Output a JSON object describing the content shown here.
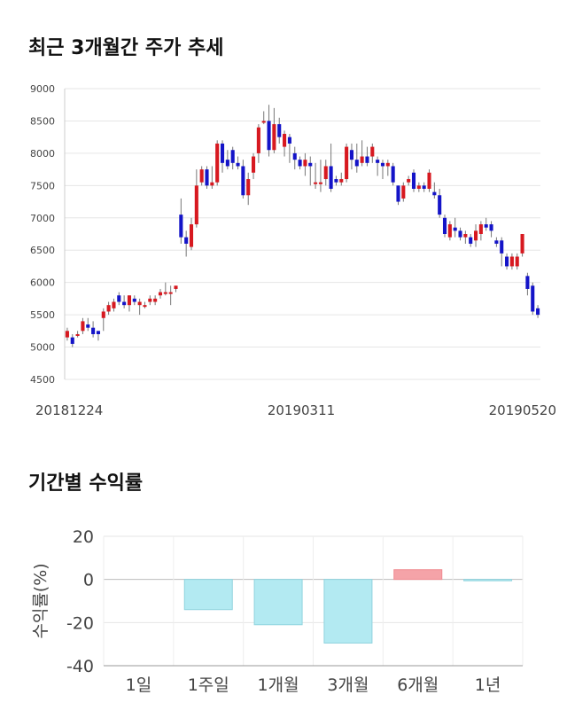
{
  "headings": {
    "price_trend": "최근 3개월간 주가 추세",
    "period_returns": "기간별 수익률"
  },
  "chart_data": [
    {
      "type": "candlestick",
      "ylim": [
        4500,
        9000
      ],
      "yticks": [
        "9000",
        "8500",
        "8000",
        "7500",
        "7000",
        "6500",
        "6000",
        "5500",
        "5000",
        "4500"
      ],
      "xticks": [
        "20181224",
        "20190311",
        "20190520"
      ],
      "grid": true,
      "up_color": "#d71920",
      "down_color": "#1414c8",
      "candles": [
        {
          "o": 5150,
          "c": 5250,
          "h": 5300,
          "l": 5100
        },
        {
          "o": 5150,
          "c": 5050,
          "h": 5200,
          "l": 5000
        },
        {
          "o": 5200,
          "c": 5200,
          "h": 5250,
          "l": 5150
        },
        {
          "o": 5250,
          "c": 5400,
          "h": 5450,
          "l": 5200
        },
        {
          "o": 5350,
          "c": 5300,
          "h": 5450,
          "l": 5250
        },
        {
          "o": 5300,
          "c": 5200,
          "h": 5400,
          "l": 5150
        },
        {
          "o": 5250,
          "c": 5200,
          "h": 5250,
          "l": 5100
        },
        {
          "o": 5450,
          "c": 5550,
          "h": 5600,
          "l": 5250
        },
        {
          "o": 5550,
          "c": 5650,
          "h": 5700,
          "l": 5500
        },
        {
          "o": 5600,
          "c": 5700,
          "h": 5750,
          "l": 5550
        },
        {
          "o": 5800,
          "c": 5700,
          "h": 5850,
          "l": 5650
        },
        {
          "o": 5700,
          "c": 5650,
          "h": 5800,
          "l": 5600
        },
        {
          "o": 5650,
          "c": 5800,
          "h": 5800,
          "l": 5550
        },
        {
          "o": 5750,
          "c": 5700,
          "h": 5800,
          "l": 5650
        },
        {
          "o": 5650,
          "c": 5700,
          "h": 5750,
          "l": 5500
        },
        {
          "o": 5650,
          "c": 5650,
          "h": 5700,
          "l": 5600
        },
        {
          "o": 5700,
          "c": 5750,
          "h": 5800,
          "l": 5650
        },
        {
          "o": 5700,
          "c": 5750,
          "h": 5800,
          "l": 5650
        },
        {
          "o": 5800,
          "c": 5850,
          "h": 5900,
          "l": 5750
        },
        {
          "o": 5850,
          "c": 5850,
          "h": 6000,
          "l": 5800
        },
        {
          "o": 5850,
          "c": 5850,
          "h": 5950,
          "l": 5650
        },
        {
          "o": 5900,
          "c": 5950,
          "h": 5950,
          "l": 5850
        },
        {
          "o": 7050,
          "c": 6700,
          "h": 7300,
          "l": 6600
        },
        {
          "o": 6700,
          "c": 6600,
          "h": 6800,
          "l": 6400
        },
        {
          "o": 6550,
          "c": 6900,
          "h": 7000,
          "l": 6500
        },
        {
          "o": 6900,
          "c": 7500,
          "h": 7750,
          "l": 6850
        },
        {
          "o": 7550,
          "c": 7750,
          "h": 7800,
          "l": 7500
        },
        {
          "o": 7750,
          "c": 7500,
          "h": 7800,
          "l": 7450
        },
        {
          "o": 7500,
          "c": 7550,
          "h": 7800,
          "l": 7450
        },
        {
          "o": 7550,
          "c": 8150,
          "h": 8200,
          "l": 7500
        },
        {
          "o": 8150,
          "c": 7850,
          "h": 8200,
          "l": 7700
        },
        {
          "o": 7900,
          "c": 7800,
          "h": 8050,
          "l": 7750
        },
        {
          "o": 8050,
          "c": 7850,
          "h": 8100,
          "l": 7750
        },
        {
          "o": 7850,
          "c": 7800,
          "h": 7950,
          "l": 7750
        },
        {
          "o": 7800,
          "c": 7350,
          "h": 7900,
          "l": 7300
        },
        {
          "o": 7350,
          "c": 7600,
          "h": 7700,
          "l": 7200
        },
        {
          "o": 7700,
          "c": 7950,
          "h": 8000,
          "l": 7600
        },
        {
          "o": 8000,
          "c": 8400,
          "h": 8450,
          "l": 7850
        },
        {
          "o": 8500,
          "c": 8500,
          "h": 8650,
          "l": 8450
        },
        {
          "o": 8500,
          "c": 8050,
          "h": 8750,
          "l": 7950
        },
        {
          "o": 8050,
          "c": 8450,
          "h": 8700,
          "l": 8000
        },
        {
          "o": 8450,
          "c": 8250,
          "h": 8550,
          "l": 8150
        },
        {
          "o": 8100,
          "c": 8300,
          "h": 8350,
          "l": 7950
        },
        {
          "o": 8250,
          "c": 8150,
          "h": 8300,
          "l": 7850
        },
        {
          "o": 8000,
          "c": 7900,
          "h": 8100,
          "l": 7750
        },
        {
          "o": 7900,
          "c": 7800,
          "h": 7950,
          "l": 7750
        },
        {
          "o": 7800,
          "c": 7900,
          "h": 8000,
          "l": 7650
        },
        {
          "o": 7850,
          "c": 7800,
          "h": 7950,
          "l": 7500
        },
        {
          "o": 7550,
          "c": 7550,
          "h": 7850,
          "l": 7450
        },
        {
          "o": 7550,
          "c": 7550,
          "h": 7900,
          "l": 7400
        },
        {
          "o": 7600,
          "c": 7800,
          "h": 7900,
          "l": 7500
        },
        {
          "o": 7800,
          "c": 7450,
          "h": 8150,
          "l": 7400
        },
        {
          "o": 7600,
          "c": 7550,
          "h": 7650,
          "l": 7500
        },
        {
          "o": 7550,
          "c": 7600,
          "h": 7700,
          "l": 7500
        },
        {
          "o": 7600,
          "c": 8100,
          "h": 8150,
          "l": 7550
        },
        {
          "o": 8050,
          "c": 7900,
          "h": 8150,
          "l": 7750
        },
        {
          "o": 7900,
          "c": 7800,
          "h": 8150,
          "l": 7700
        },
        {
          "o": 7850,
          "c": 7950,
          "h": 8200,
          "l": 7800
        },
        {
          "o": 7950,
          "c": 7850,
          "h": 8100,
          "l": 7800
        },
        {
          "o": 7950,
          "c": 8100,
          "h": 8150,
          "l": 7850
        },
        {
          "o": 7900,
          "c": 7850,
          "h": 7950,
          "l": 7650
        },
        {
          "o": 7850,
          "c": 7800,
          "h": 7900,
          "l": 7600
        },
        {
          "o": 7800,
          "c": 7850,
          "h": 7900,
          "l": 7650
        },
        {
          "o": 7800,
          "c": 7550,
          "h": 7850,
          "l": 7500
        },
        {
          "o": 7500,
          "c": 7250,
          "h": 7500,
          "l": 7200
        },
        {
          "o": 7300,
          "c": 7500,
          "h": 7550,
          "l": 7250
        },
        {
          "o": 7550,
          "c": 7600,
          "h": 7650,
          "l": 7500
        },
        {
          "o": 7700,
          "c": 7450,
          "h": 7750,
          "l": 7400
        },
        {
          "o": 7450,
          "c": 7500,
          "h": 7550,
          "l": 7400
        },
        {
          "o": 7500,
          "c": 7450,
          "h": 7550,
          "l": 7400
        },
        {
          "o": 7450,
          "c": 7700,
          "h": 7750,
          "l": 7400
        },
        {
          "o": 7400,
          "c": 7350,
          "h": 7550,
          "l": 7300
        },
        {
          "o": 7350,
          "c": 7050,
          "h": 7450,
          "l": 7000
        },
        {
          "o": 7000,
          "c": 6750,
          "h": 7050,
          "l": 6700
        },
        {
          "o": 6700,
          "c": 6900,
          "h": 6950,
          "l": 6650
        },
        {
          "o": 6850,
          "c": 6800,
          "h": 7000,
          "l": 6700
        },
        {
          "o": 6800,
          "c": 6700,
          "h": 6850,
          "l": 6650
        },
        {
          "o": 6700,
          "c": 6750,
          "h": 6800,
          "l": 6600
        },
        {
          "o": 6700,
          "c": 6600,
          "h": 6750,
          "l": 6550
        },
        {
          "o": 6650,
          "c": 6800,
          "h": 6900,
          "l": 6550
        },
        {
          "o": 6750,
          "c": 6900,
          "h": 6950,
          "l": 6650
        },
        {
          "o": 6900,
          "c": 6850,
          "h": 7000,
          "l": 6800
        },
        {
          "o": 6900,
          "c": 6800,
          "h": 6950,
          "l": 6700
        },
        {
          "o": 6650,
          "c": 6600,
          "h": 6700,
          "l": 6550
        },
        {
          "o": 6650,
          "c": 6450,
          "h": 6700,
          "l": 6250
        },
        {
          "o": 6400,
          "c": 6250,
          "h": 6450,
          "l": 6200
        },
        {
          "o": 6250,
          "c": 6400,
          "h": 6450,
          "l": 6200
        },
        {
          "o": 6250,
          "c": 6400,
          "h": 6450,
          "l": 6200
        },
        {
          "o": 6450,
          "c": 6750,
          "h": 6750,
          "l": 6400
        },
        {
          "o": 6100,
          "c": 5900,
          "h": 6150,
          "l": 5800
        },
        {
          "o": 5950,
          "c": 5550,
          "h": 6000,
          "l": 5500
        },
        {
          "o": 5600,
          "c": 5500,
          "h": 5650,
          "l": 5450
        }
      ]
    },
    {
      "type": "bar",
      "ylabel": "수익률(%)",
      "ylim": [
        -40,
        20
      ],
      "yticks": [
        "20",
        "0",
        "-20",
        "-40"
      ],
      "categories": [
        "1일",
        "1주일",
        "1개월",
        "3개월",
        "6개월",
        "1년"
      ],
      "values": [
        0,
        -14,
        -21,
        -29.5,
        4.5,
        -0.5
      ],
      "positive_color": "#f5a3a8",
      "negative_color": "#b3eaf2",
      "grid": true
    }
  ]
}
